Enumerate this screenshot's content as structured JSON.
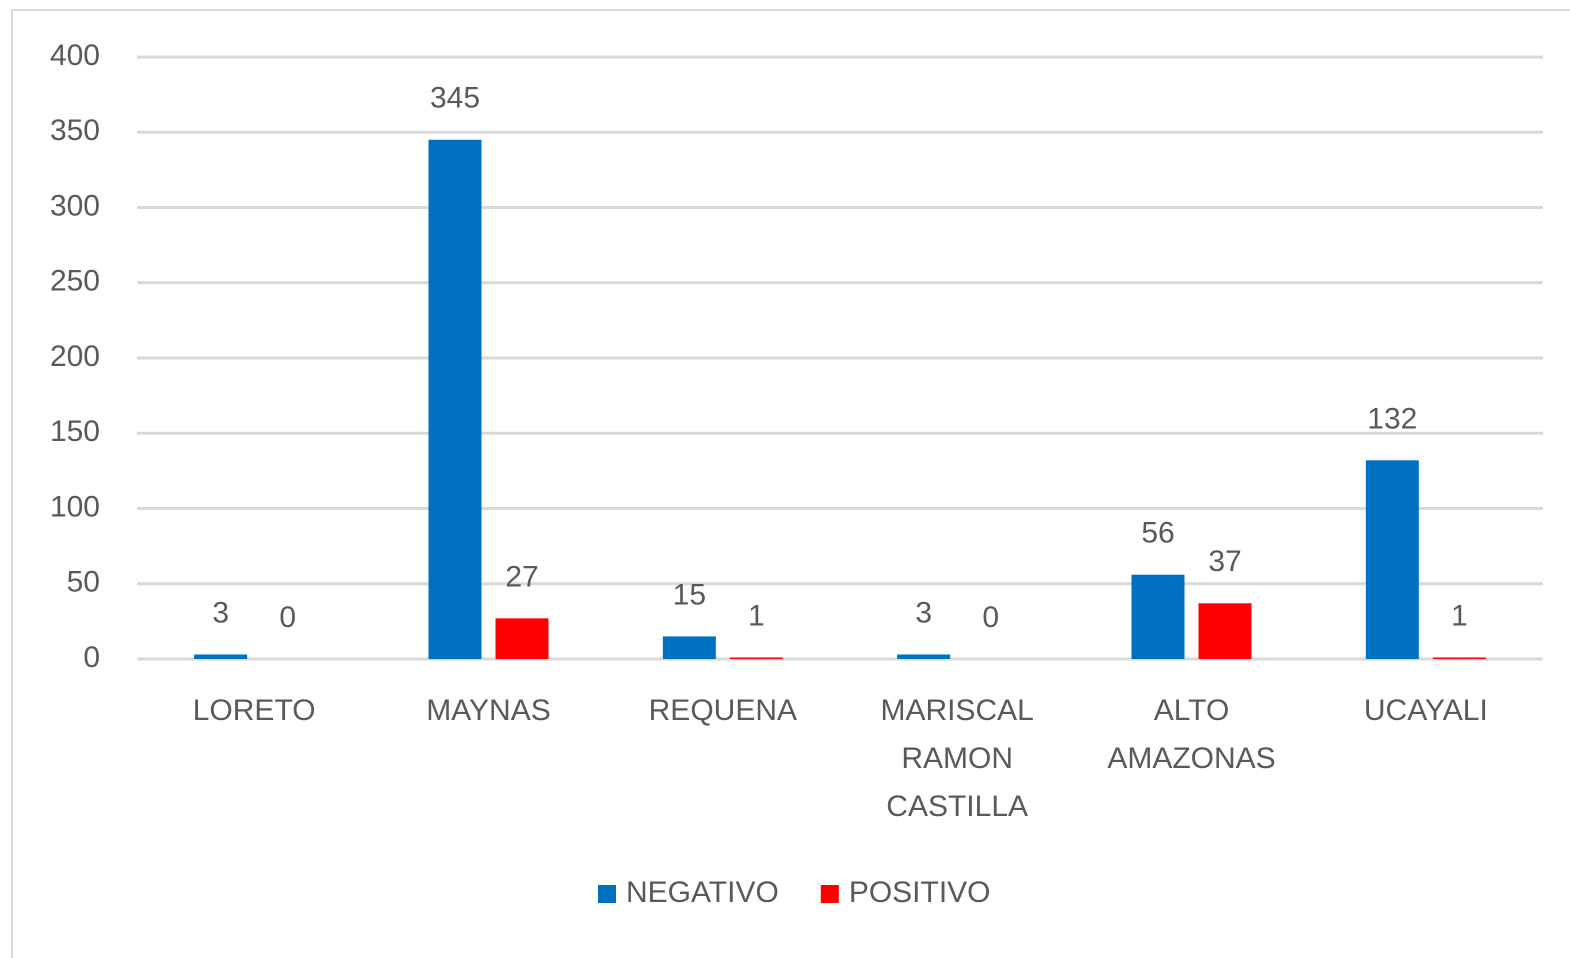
{
  "chart_data": {
    "type": "bar",
    "categories": [
      "LORETO",
      "MAYNAS",
      "REQUENA",
      "MARISCAL RAMON CASTILLA",
      "ALTO AMAZONAS",
      "UCAYALI"
    ],
    "series": [
      {
        "name": "NEGATIVO",
        "color": "#0070c0",
        "values": [
          3,
          345,
          15,
          3,
          56,
          132
        ]
      },
      {
        "name": "POSITIVO",
        "color": "#ff0000",
        "values": [
          0,
          27,
          1,
          0,
          37,
          1
        ]
      }
    ],
    "ylim": [
      0,
      400
    ],
    "yticks": [
      0,
      50,
      100,
      150,
      200,
      250,
      300,
      350,
      400
    ],
    "grid": true,
    "legend": "bottom"
  }
}
